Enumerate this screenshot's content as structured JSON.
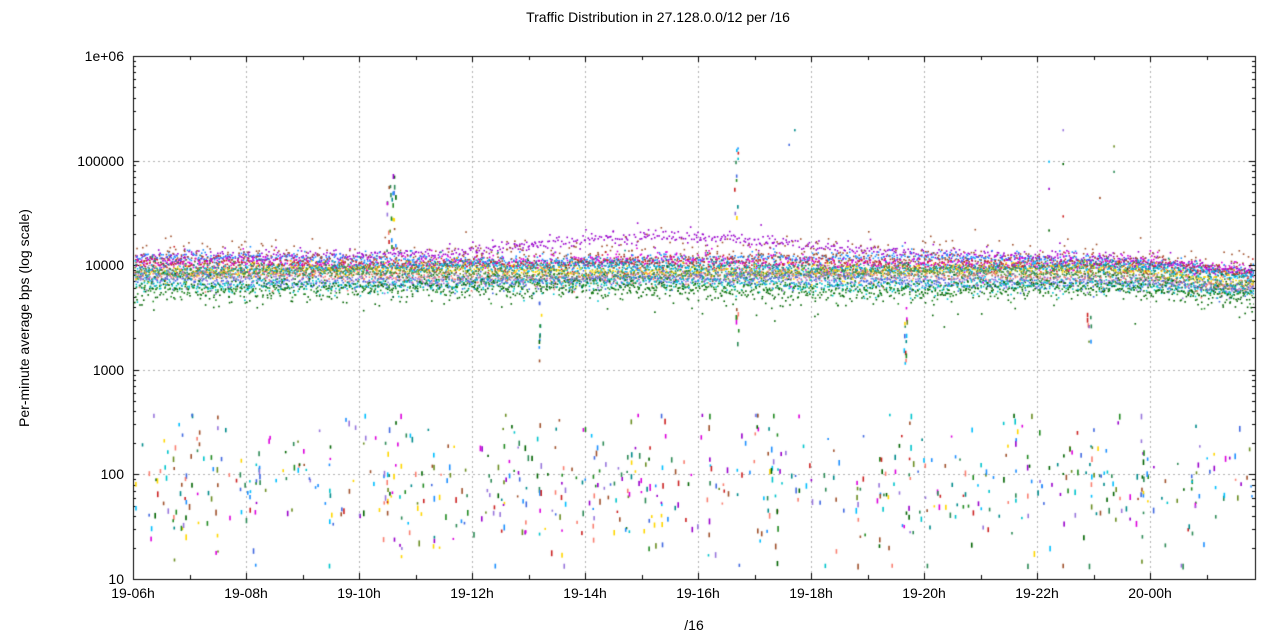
{
  "chart": {
    "title": "Traffic Distribution in 27.128.0.0/12 per /16",
    "y_axis_label": "Per-minute average bps (log scale)",
    "x_axis_label": "/16"
  },
  "colors": {
    "background": "#ffffff",
    "border": "#000000",
    "text": "#000000",
    "grid": "#b4b4b4"
  },
  "chart_data": {
    "type": "scatter",
    "title": "Traffic Distribution in 27.128.0.0/12 per /16",
    "xlabel": "/16",
    "ylabel": "Per-minute average bps (log scale)",
    "y_scale": "log10",
    "ylim": [
      10,
      1000000
    ],
    "y_ticks": [
      {
        "value": 10,
        "label": "10"
      },
      {
        "value": 100,
        "label": "100"
      },
      {
        "value": 1000,
        "label": "1000"
      },
      {
        "value": 10000,
        "label": "10000"
      },
      {
        "value": 100000,
        "label": "100000"
      },
      {
        "value": 1000000,
        "label": "1e+06"
      }
    ],
    "x_ticks": [
      {
        "hour": 0,
        "label": "19-06h"
      },
      {
        "hour": 2,
        "label": "19-08h"
      },
      {
        "hour": 4,
        "label": "19-10h"
      },
      {
        "hour": 6,
        "label": "19-12h"
      },
      {
        "hour": 8,
        "label": "19-14h"
      },
      {
        "hour": 10,
        "label": "19-16h"
      },
      {
        "hour": 12,
        "label": "19-18h"
      },
      {
        "hour": 14,
        "label": "19-20h"
      },
      {
        "hour": 16,
        "label": "19-22h"
      },
      {
        "hour": 18,
        "label": "20-00h"
      }
    ],
    "x_minor_tick_every_hours": 1,
    "x_span_hours": 19.86,
    "grid": {
      "shown": true,
      "style": "dashed"
    },
    "legend": "none",
    "n_series": 16,
    "series": [
      {
        "color": "#9900cc",
        "band_level_bps": 11800,
        "spread_dex": 0.022,
        "hump": {
          "peak_hour": 9.3,
          "amp": 0.7,
          "sigma_hours": 2.1,
          "peak_bps": 20000
        }
      },
      {
        "color": "#1e90ff",
        "band_level_bps": 11600,
        "spread_dex": 0.02
      },
      {
        "color": "#a0522d",
        "band_level_bps": 11300,
        "spread_dex": 0.035,
        "scatter_top": true
      },
      {
        "color": "#cc2222",
        "band_level_bps": 10400,
        "spread_dex": 0.028
      },
      {
        "color": "#dd00dd",
        "band_level_bps": 10800,
        "spread_dex": 0.03
      },
      {
        "color": "#008b8b",
        "band_level_bps": 9800,
        "spread_dex": 0.025
      },
      {
        "color": "#00bfff",
        "band_level_bps": 9400,
        "spread_dex": 0.025
      },
      {
        "color": "#ffd700",
        "band_level_bps": 8900,
        "spread_dex": 0.025
      },
      {
        "color": "#6b8e23",
        "band_level_bps": 8600,
        "spread_dex": 0.025
      },
      {
        "color": "#2e8b57",
        "band_level_bps": 8300,
        "spread_dex": 0.025
      },
      {
        "color": "#fa8072",
        "band_level_bps": 7900,
        "spread_dex": 0.028
      },
      {
        "color": "#9977dd",
        "band_level_bps": 7500,
        "spread_dex": 0.028
      },
      {
        "color": "#4169e1",
        "band_level_bps": 7100,
        "spread_dex": 0.028
      },
      {
        "color": "#00c5cd",
        "band_level_bps": 6700,
        "spread_dex": 0.03
      },
      {
        "color": "#228b22",
        "band_level_bps": 6300,
        "spread_dex": 0.035
      },
      {
        "color": "#006400",
        "band_level_bps": 5800,
        "spread_dex": 0.05
      }
    ],
    "right_end_decay": {
      "start_hour": 17.2,
      "factor": 0.8
    },
    "noise_floor_cloud": {
      "bps_min": 14,
      "bps_max": 380,
      "bps_typical": 80,
      "log10_mean": 1.9,
      "log10_sigma": 0.36
    },
    "events": [
      {
        "id": "spike-up-1910h",
        "kind": "column",
        "hour": 4.55,
        "bps_min": 13000,
        "bps_max": 80000,
        "count": 26,
        "spread_hours": 0.09
      },
      {
        "id": "spike-up-1916h",
        "kind": "column",
        "hour": 10.68,
        "bps_min": 16000,
        "bps_max": 135000,
        "count": 11,
        "spread_hours": 0.05
      },
      {
        "id": "spike-down-1913h",
        "kind": "column",
        "hour": 7.2,
        "bps_min": 1000,
        "bps_max": 4500,
        "count": 11,
        "spread_hours": 0.03
      },
      {
        "id": "spike-down-1916h",
        "kind": "column",
        "hour": 10.68,
        "bps_min": 1300,
        "bps_max": 4200,
        "count": 7,
        "spread_hours": 0.03
      },
      {
        "id": "spike-down-1919h",
        "kind": "column",
        "hour": 13.66,
        "bps_min": 1100,
        "bps_max": 4200,
        "count": 13,
        "spread_hours": 0.03
      },
      {
        "id": "spike-down-1922h",
        "kind": "column",
        "hour": 16.92,
        "bps_min": 1800,
        "bps_max": 4500,
        "count": 9,
        "spread_hours": 0.04
      },
      {
        "id": "outliers-1917h",
        "kind": "points",
        "points": [
          [
            11.6,
            145000
          ],
          [
            11.7,
            200000
          ]
        ]
      },
      {
        "id": "outlier-cluster-1922h",
        "kind": "points",
        "points": [
          [
            16.45,
            200000
          ],
          [
            16.2,
            100000
          ],
          [
            16.45,
            95000
          ],
          [
            16.2,
            55000
          ],
          [
            16.45,
            30000
          ],
          [
            16.2,
            22000
          ],
          [
            17.35,
            140000
          ],
          [
            17.35,
            80000
          ],
          [
            17.1,
            45000
          ]
        ]
      }
    ]
  }
}
